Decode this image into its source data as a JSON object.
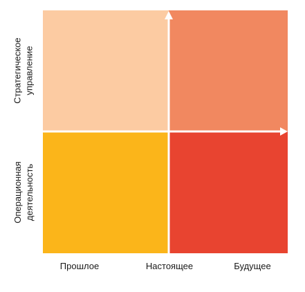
{
  "matrix": {
    "rows": [
      {
        "label_line1": "Стратегическое",
        "label_line2": "управление"
      },
      {
        "label_line1": "Операционная",
        "label_line2": "деятельность"
      }
    ],
    "columns": [
      {
        "label": "Прошлое"
      },
      {
        "label": "Настоящее"
      },
      {
        "label": "Будущее"
      }
    ],
    "colors": {
      "top_left": "#fccba2",
      "top_right": "#f18860",
      "bottom_left": "#fbb51a",
      "bottom_right": "#e84430",
      "axis": "#ffffff"
    }
  }
}
